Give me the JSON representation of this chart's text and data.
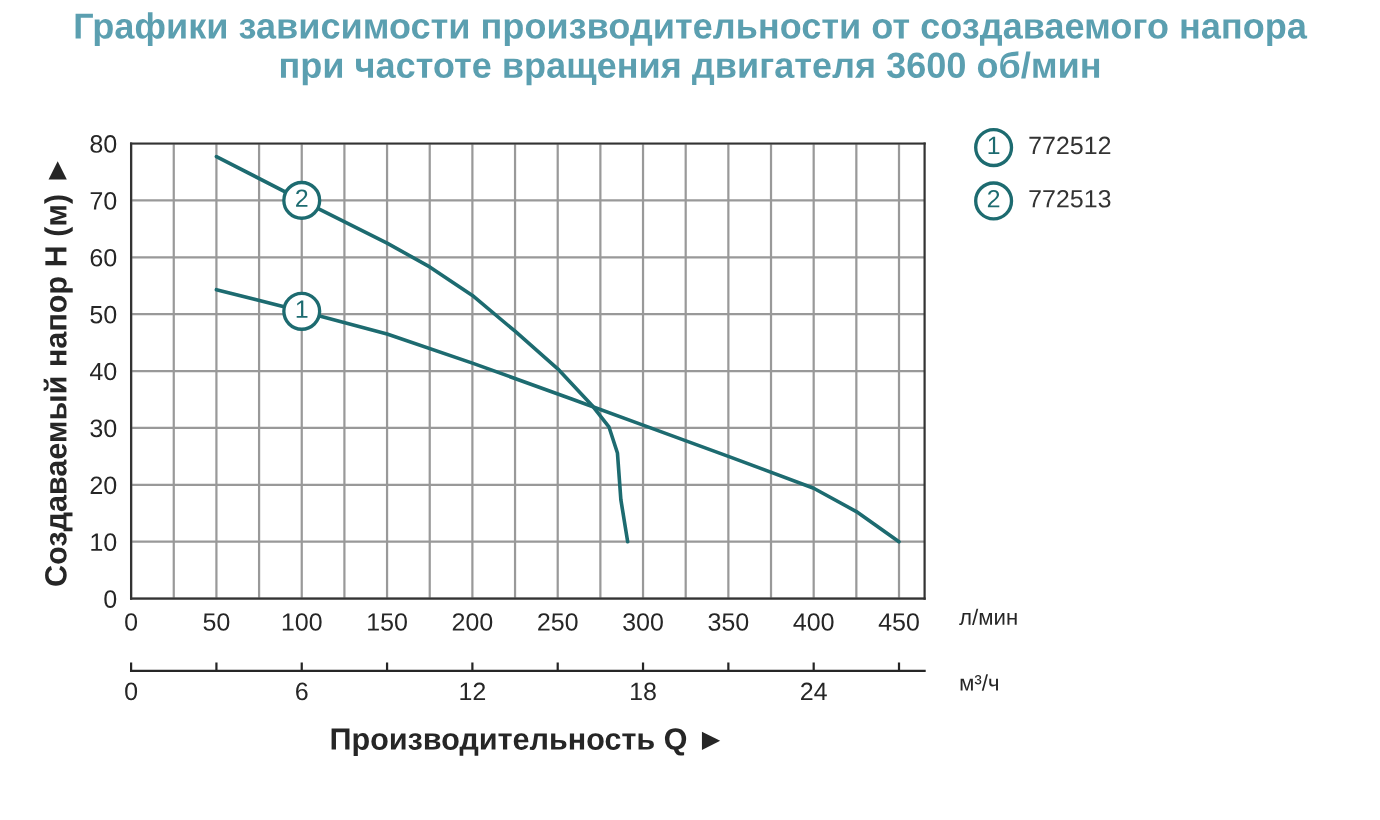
{
  "chart_data": {
    "type": "line",
    "title": "Графики зависимости производительности от создаваемого напора\nпри частоте вращения двигателя 3600 об/мин",
    "xlabel": "Производительность Q ►",
    "ylabel": "Создаваемый напор H (м) ►",
    "x2label": "м³/ч",
    "xlim": [
      0,
      465
    ],
    "xticks": [
      0,
      50,
      100,
      150,
      200,
      250,
      300,
      350,
      400,
      450
    ],
    "ylim": [
      0,
      80
    ],
    "yticks": [
      0,
      10,
      20,
      30,
      40,
      50,
      60,
      70,
      80
    ],
    "x2lim": [
      0,
      27.9
    ],
    "x2ticks": [
      0,
      {
        "value": 3,
        "label": null
      },
      6,
      {
        "value": 9,
        "label": null
      },
      12,
      {
        "value": 15,
        "label": null
      },
      18,
      {
        "value": 21,
        "label": null
      },
      24,
      {
        "value": 27,
        "label": null
      }
    ],
    "grid": true,
    "legend": "top right",
    "line_style": "solid",
    "series": [
      {
        "name": "772512",
        "color": "#1d6b70",
        "x": [
          50,
          100,
          150,
          200,
          259,
          300,
          350,
          400,
          425,
          450
        ],
        "values": [
          54.3,
          50.5,
          46.5,
          41.4,
          35,
          30.5,
          25,
          19.4,
          15.3,
          10
        ]
      },
      {
        "name": "772513",
        "color": "#1d6b70",
        "x": [
          50,
          100,
          150,
          175,
          200,
          225,
          250,
          270,
          280,
          285,
          287,
          291
        ],
        "values": [
          77.7,
          70,
          62.5,
          58.3,
          53.3,
          47,
          40.4,
          34,
          30.2,
          25.6,
          17.4,
          10
        ]
      }
    ],
    "annotations": [
      {
        "text": "1",
        "x": 100,
        "y": 50.5
      },
      {
        "text": "2",
        "x": 100,
        "y": 70
      },
      "л/мин"
    ]
  }
}
